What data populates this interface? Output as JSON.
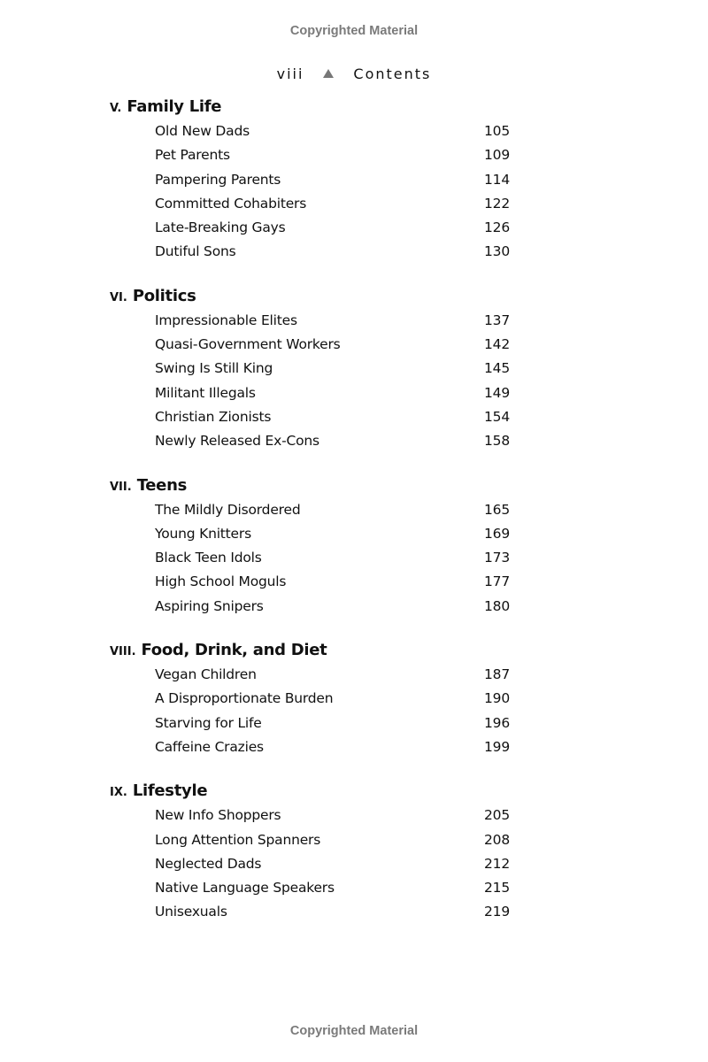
{
  "watermark": {
    "top": "Copyrighted Material",
    "bottom": "Copyrighted Material"
  },
  "running_head": {
    "page": "viii",
    "separator_icon": "triangle-up",
    "title": "Contents"
  },
  "sections": [
    {
      "number": "V.",
      "title": "Family Life",
      "entries": [
        {
          "title": "Old New Dads",
          "page": "105"
        },
        {
          "title": "Pet Parents",
          "page": "109"
        },
        {
          "title": "Pampering Parents",
          "page": "114"
        },
        {
          "title": "Committed Cohabiters",
          "page": "122"
        },
        {
          "title": "Late-Breaking Gays",
          "page": "126"
        },
        {
          "title": "Dutiful Sons",
          "page": "130"
        }
      ]
    },
    {
      "number": "VI.",
      "title": "Politics",
      "entries": [
        {
          "title": "Impressionable Elites",
          "page": "137"
        },
        {
          "title": "Quasi-Government Workers",
          "page": "142"
        },
        {
          "title": "Swing Is Still King",
          "page": "145"
        },
        {
          "title": "Militant Illegals",
          "page": "149"
        },
        {
          "title": "Christian Zionists",
          "page": "154"
        },
        {
          "title": "Newly Released Ex-Cons",
          "page": "158"
        }
      ]
    },
    {
      "number": "VII.",
      "title": "Teens",
      "entries": [
        {
          "title": "The Mildly Disordered",
          "page": "165"
        },
        {
          "title": "Young Knitters",
          "page": "169"
        },
        {
          "title": "Black Teen Idols",
          "page": "173"
        },
        {
          "title": "High School Moguls",
          "page": "177"
        },
        {
          "title": "Aspiring Snipers",
          "page": "180"
        }
      ]
    },
    {
      "number": "VIII.",
      "title": "Food, Drink, and Diet",
      "entries": [
        {
          "title": "Vegan Children",
          "page": "187"
        },
        {
          "title": "A Disproportionate Burden",
          "page": "190"
        },
        {
          "title": "Starving for Life",
          "page": "196"
        },
        {
          "title": "Caffeine Crazies",
          "page": "199"
        }
      ]
    },
    {
      "number": "IX.",
      "title": "Lifestyle",
      "entries": [
        {
          "title": "New Info Shoppers",
          "page": "205"
        },
        {
          "title": "Long Attention Spanners",
          "page": "208"
        },
        {
          "title": "Neglected Dads",
          "page": "212"
        },
        {
          "title": "Native Language Speakers",
          "page": "215"
        },
        {
          "title": "Unisexuals",
          "page": "219"
        }
      ]
    }
  ]
}
